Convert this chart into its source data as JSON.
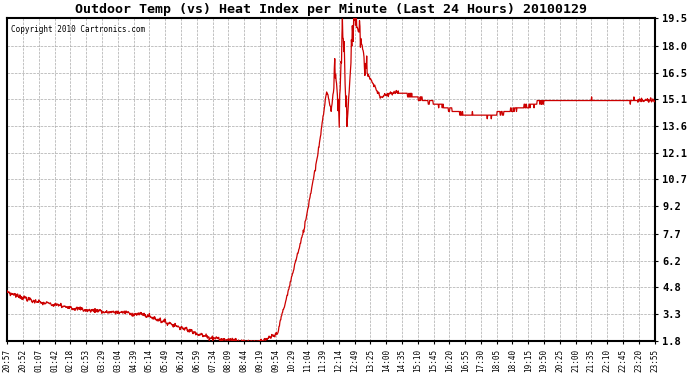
{
  "title": "Outdoor Temp (vs) Heat Index per Minute (Last 24 Hours) 20100129",
  "copyright": "Copyright 2010 Cartronics.com",
  "line_color": "#cc0000",
  "bg_color": "#ffffff",
  "plot_bg_color": "#ffffff",
  "grid_color": "#aaaaaa",
  "yticks": [
    1.8,
    3.3,
    4.8,
    6.2,
    7.7,
    9.2,
    10.7,
    12.1,
    13.6,
    15.1,
    16.5,
    18.0,
    19.5
  ],
  "ylim": [
    1.8,
    19.5
  ],
  "xtick_labels": [
    "20:57",
    "20:52",
    "01:07",
    "01:42",
    "02:18",
    "02:53",
    "03:29",
    "03:04",
    "04:39",
    "05:14",
    "05:49",
    "06:24",
    "06:59",
    "07:34",
    "08:09",
    "08:44",
    "09:19",
    "09:54",
    "10:29",
    "11:04",
    "11:39",
    "12:14",
    "12:49",
    "13:25",
    "14:00",
    "14:35",
    "15:10",
    "15:45",
    "16:20",
    "16:55",
    "17:30",
    "18:05",
    "18:40",
    "19:15",
    "19:50",
    "20:25",
    "21:00",
    "21:35",
    "22:10",
    "22:45",
    "23:20",
    "23:55"
  ],
  "num_points": 1440
}
